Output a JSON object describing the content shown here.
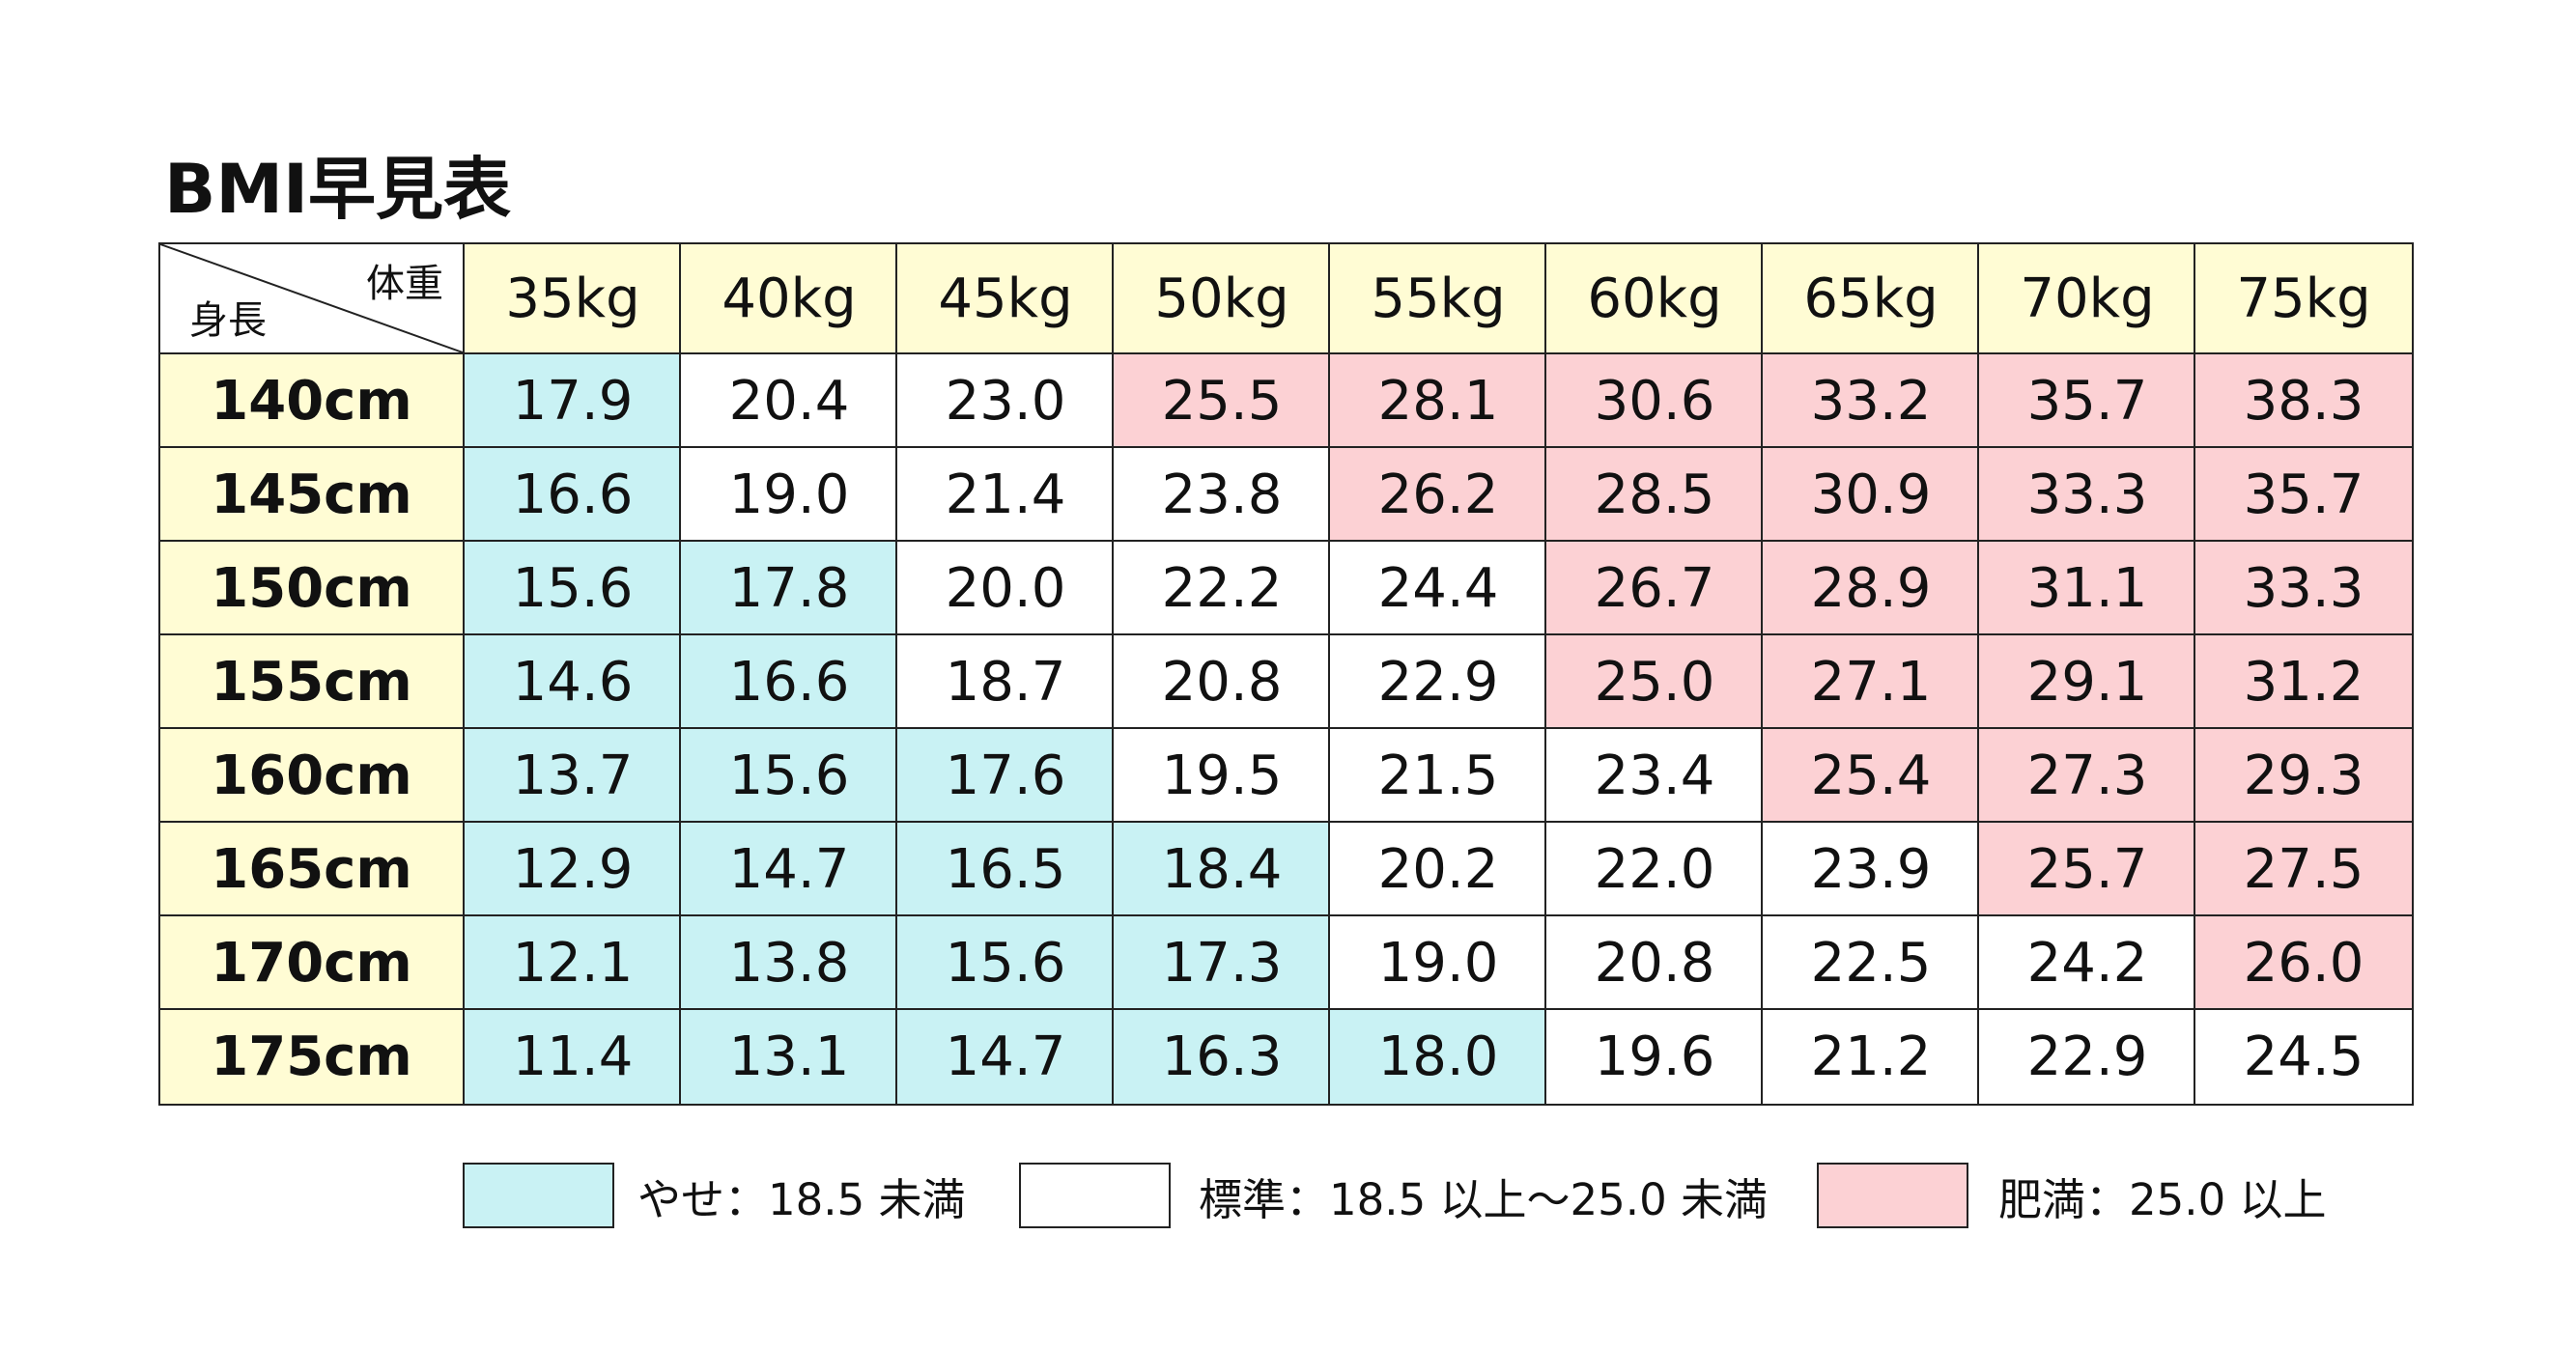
{
  "title": "BMI早見表",
  "corner": {
    "weight": "体重",
    "height": "身長"
  },
  "header_color": "#fffcd4",
  "columns": [
    "35kg",
    "40kg",
    "45kg",
    "50kg",
    "55kg",
    "60kg",
    "65kg",
    "70kg",
    "75kg"
  ],
  "rows": [
    {
      "label": "140cm",
      "values": [
        "17.9",
        "20.4",
        "23.0",
        "25.5",
        "28.1",
        "30.6",
        "33.2",
        "35.7",
        "38.3"
      ],
      "colors": [
        "#c9f2f4",
        "#ffffff",
        "#ffffff",
        "#fcd1d4",
        "#fcd1d4",
        "#fcd1d4",
        "#fcd1d4",
        "#fcd1d4",
        "#fcd1d4"
      ]
    },
    {
      "label": "145cm",
      "values": [
        "16.6",
        "19.0",
        "21.4",
        "23.8",
        "26.2",
        "28.5",
        "30.9",
        "33.3",
        "35.7"
      ],
      "colors": [
        "#c9f2f4",
        "#ffffff",
        "#ffffff",
        "#ffffff",
        "#fcd1d4",
        "#fcd1d4",
        "#fcd1d4",
        "#fcd1d4",
        "#fcd1d4"
      ]
    },
    {
      "label": "150cm",
      "values": [
        "15.6",
        "17.8",
        "20.0",
        "22.2",
        "24.4",
        "26.7",
        "28.9",
        "31.1",
        "33.3"
      ],
      "colors": [
        "#c9f2f4",
        "#c9f2f4",
        "#ffffff",
        "#ffffff",
        "#ffffff",
        "#fcd1d4",
        "#fcd1d4",
        "#fcd1d4",
        "#fcd1d4"
      ]
    },
    {
      "label": "155cm",
      "values": [
        "14.6",
        "16.6",
        "18.7",
        "20.8",
        "22.9",
        "25.0",
        "27.1",
        "29.1",
        "31.2"
      ],
      "colors": [
        "#c9f2f4",
        "#c9f2f4",
        "#ffffff",
        "#ffffff",
        "#ffffff",
        "#fcd1d4",
        "#fcd1d4",
        "#fcd1d4",
        "#fcd1d4"
      ]
    },
    {
      "label": "160cm",
      "values": [
        "13.7",
        "15.6",
        "17.6",
        "19.5",
        "21.5",
        "23.4",
        "25.4",
        "27.3",
        "29.3"
      ],
      "colors": [
        "#c9f2f4",
        "#c9f2f4",
        "#c9f2f4",
        "#ffffff",
        "#ffffff",
        "#ffffff",
        "#fcd1d4",
        "#fcd1d4",
        "#fcd1d4"
      ]
    },
    {
      "label": "165cm",
      "values": [
        "12.9",
        "14.7",
        "16.5",
        "18.4",
        "20.2",
        "22.0",
        "23.9",
        "25.7",
        "27.5"
      ],
      "colors": [
        "#c9f2f4",
        "#c9f2f4",
        "#c9f2f4",
        "#c9f2f4",
        "#ffffff",
        "#ffffff",
        "#ffffff",
        "#fcd1d4",
        "#fcd1d4"
      ]
    },
    {
      "label": "170cm",
      "values": [
        "12.1",
        "13.8",
        "15.6",
        "17.3",
        "19.0",
        "20.8",
        "22.5",
        "24.2",
        "26.0"
      ],
      "colors": [
        "#c9f2f4",
        "#c9f2f4",
        "#c9f2f4",
        "#c9f2f4",
        "#ffffff",
        "#ffffff",
        "#ffffff",
        "#ffffff",
        "#fcd1d4"
      ]
    },
    {
      "label": "175cm",
      "values": [
        "11.4",
        "13.1",
        "14.7",
        "16.3",
        "18.0",
        "19.6",
        "21.2",
        "22.9",
        "24.5"
      ],
      "colors": [
        "#c9f2f4",
        "#c9f2f4",
        "#c9f2f4",
        "#c9f2f4",
        "#c9f2f4",
        "#ffffff",
        "#ffffff",
        "#ffffff",
        "#ffffff"
      ]
    }
  ],
  "legend": [
    {
      "label": "やせ：18.5 未満",
      "color": "#c9f2f4"
    },
    {
      "label": "標準：18.5 以上～25.0 未満",
      "color": "#ffffff"
    },
    {
      "label": "肥満：25.0 以上",
      "color": "#fcd1d4"
    }
  ]
}
